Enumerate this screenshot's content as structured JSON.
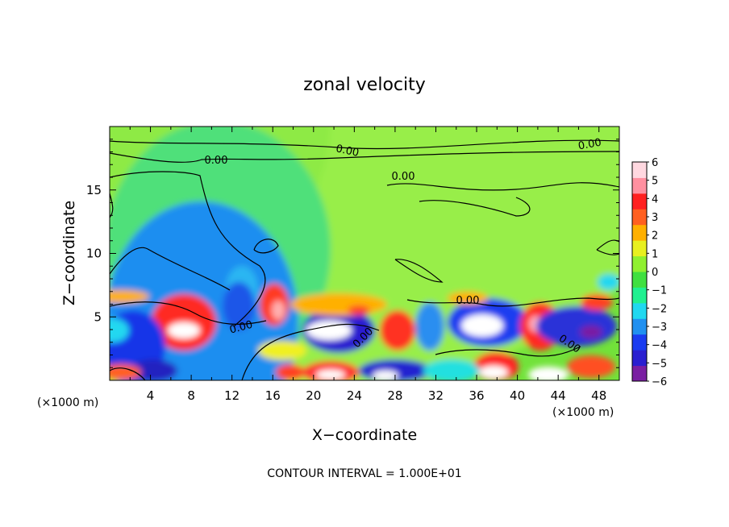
{
  "chart_data": {
    "type": "heatmap",
    "title": "zonal velocity",
    "xlabel": "X−coordinate",
    "ylabel": "Z−coordinate",
    "x_unit_label_left": "(×1000 m)",
    "x_unit_label_right": "(×1000 m)",
    "footer": "CONTOUR INTERVAL = 1.000E+01",
    "xlim": [
      0,
      50
    ],
    "ylim": [
      0,
      20
    ],
    "x_ticks": [
      4,
      8,
      12,
      16,
      20,
      24,
      28,
      32,
      36,
      40,
      44,
      48
    ],
    "y_ticks": [
      5,
      10,
      15
    ],
    "colorbar": {
      "min": -6,
      "max": 6,
      "labels": [
        "6",
        "5",
        "4",
        "3",
        "2",
        "1",
        "0",
        "−1",
        "−2",
        "−3",
        "−4",
        "−5",
        "−6"
      ],
      "colors": [
        "#7a1fa2",
        "#2a1fd0",
        "#1a3cf0",
        "#2090f0",
        "#20d8f0",
        "#20f090",
        "#40e040",
        "#90f030",
        "#e8f020",
        "#ffb000",
        "#ff6020",
        "#ff2020",
        "#ff90a0",
        "#ffd8e0"
      ]
    },
    "contour_labels": [
      "0.00",
      "0.00",
      "0.00",
      "0.00",
      "0.00",
      "0.00",
      "0.00",
      "0.00"
    ],
    "grid": false
  }
}
